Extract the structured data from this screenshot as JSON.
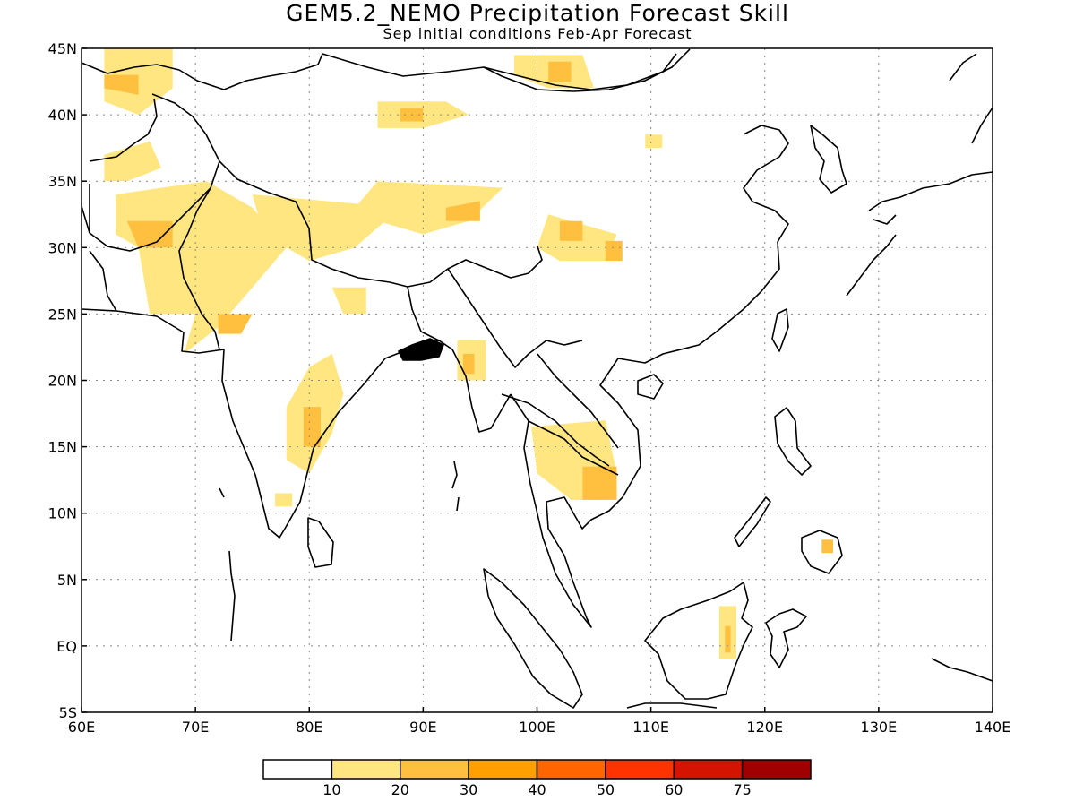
{
  "title": "GEM5.2_NEMO Precipitation Forecast Skill",
  "subtitle": "Sep initial conditions  Feb-Apr Forecast",
  "map": {
    "lon_range": [
      60,
      140
    ],
    "lat_range": [
      -5,
      45
    ],
    "gridlines": true,
    "lon_ticks": [
      "60E",
      "70E",
      "80E",
      "90E",
      "100E",
      "110E",
      "120E",
      "130E",
      "140E"
    ],
    "lat_ticks": [
      "5S",
      "EQ",
      "5N",
      "10N",
      "15N",
      "20N",
      "25N",
      "30N",
      "35N",
      "40N",
      "45N"
    ]
  },
  "colorbar": {
    "labels": [
      "10",
      "20",
      "30",
      "40",
      "50",
      "60",
      "75"
    ],
    "colors": [
      "#ffffff",
      "#ffe680",
      "#ffc040",
      "#ffa000",
      "#ff6600",
      "#ff3300",
      "#d41400",
      "#a00000"
    ]
  },
  "skill_regions": [
    {
      "level": 1,
      "lonlat": [
        [
          62,
          45
        ],
        [
          68,
          45
        ],
        [
          68,
          42
        ],
        [
          65,
          40
        ],
        [
          62,
          41
        ]
      ]
    },
    {
      "level": 2,
      "lonlat": [
        [
          62,
          43
        ],
        [
          65,
          43
        ],
        [
          65,
          41.5
        ],
        [
          62,
          42
        ]
      ]
    },
    {
      "level": 1,
      "lonlat": [
        [
          62,
          37
        ],
        [
          66,
          38
        ],
        [
          67,
          36
        ],
        [
          64,
          35
        ],
        [
          62,
          35
        ]
      ]
    },
    {
      "level": 1,
      "lonlat": [
        [
          63,
          34
        ],
        [
          71,
          35
        ],
        [
          75,
          33
        ],
        [
          78,
          30
        ],
        [
          74,
          26
        ],
        [
          72,
          24
        ],
        [
          69,
          22
        ],
        [
          70,
          25
        ],
        [
          66,
          25
        ],
        [
          65,
          30
        ],
        [
          63,
          31
        ]
      ]
    },
    {
      "level": 2,
      "lonlat": [
        [
          64,
          32
        ],
        [
          68,
          32
        ],
        [
          68,
          30
        ],
        [
          65,
          30
        ]
      ]
    },
    {
      "level": 2,
      "lonlat": [
        [
          72,
          25
        ],
        [
          75,
          25
        ],
        [
          74,
          23.5
        ],
        [
          72,
          23.5
        ]
      ]
    },
    {
      "level": 1,
      "lonlat": [
        [
          75,
          34
        ],
        [
          88,
          33
        ],
        [
          84,
          30
        ],
        [
          80,
          29
        ],
        [
          76,
          31
        ]
      ]
    },
    {
      "level": 1,
      "lonlat": [
        [
          82,
          27
        ],
        [
          85,
          27
        ],
        [
          85,
          25
        ],
        [
          83,
          25
        ]
      ]
    },
    {
      "level": 1,
      "lonlat": [
        [
          80,
          21
        ],
        [
          82,
          22
        ],
        [
          83,
          19
        ],
        [
          82,
          16
        ],
        [
          80,
          13
        ],
        [
          78,
          14
        ],
        [
          78,
          18
        ]
      ]
    },
    {
      "level": 2,
      "lonlat": [
        [
          79.5,
          18
        ],
        [
          81,
          18
        ],
        [
          81,
          15
        ],
        [
          79.5,
          15
        ]
      ]
    },
    {
      "level": 1,
      "lonlat": [
        [
          77,
          11.5
        ],
        [
          78.5,
          11.5
        ],
        [
          78.5,
          10.5
        ],
        [
          77,
          10.5
        ]
      ]
    },
    {
      "level": 1,
      "lonlat": [
        [
          86,
          35
        ],
        [
          97,
          34.5
        ],
        [
          94,
          32
        ],
        [
          90,
          31
        ],
        [
          86,
          32
        ],
        [
          83,
          32
        ]
      ]
    },
    {
      "level": 2,
      "lonlat": [
        [
          92,
          33
        ],
        [
          95,
          33.5
        ],
        [
          95,
          32
        ],
        [
          92,
          32
        ]
      ]
    },
    {
      "level": 1,
      "lonlat": [
        [
          86,
          41
        ],
        [
          92,
          41
        ],
        [
          94,
          40
        ],
        [
          90,
          39
        ],
        [
          86,
          39
        ]
      ]
    },
    {
      "level": 2,
      "lonlat": [
        [
          88,
          40.5
        ],
        [
          90,
          40.5
        ],
        [
          90,
          39.5
        ],
        [
          88,
          39.5
        ]
      ]
    },
    {
      "level": 1,
      "lonlat": [
        [
          98,
          44.5
        ],
        [
          104,
          44.5
        ],
        [
          105,
          42
        ],
        [
          101,
          42
        ],
        [
          98,
          43
        ]
      ]
    },
    {
      "level": 2,
      "lonlat": [
        [
          101,
          44
        ],
        [
          103,
          44
        ],
        [
          103,
          42.5
        ],
        [
          101,
          42.5
        ]
      ]
    },
    {
      "level": 1,
      "lonlat": [
        [
          101,
          32.5
        ],
        [
          107,
          31
        ],
        [
          106,
          29
        ],
        [
          102,
          29
        ],
        [
          100,
          30
        ]
      ]
    },
    {
      "level": 2,
      "lonlat": [
        [
          102,
          32
        ],
        [
          104,
          32
        ],
        [
          104,
          30.5
        ],
        [
          102,
          30.5
        ]
      ]
    },
    {
      "level": 2,
      "lonlat": [
        [
          106,
          30.5
        ],
        [
          107.5,
          30.5
        ],
        [
          107.5,
          29
        ],
        [
          106,
          29
        ]
      ]
    },
    {
      "level": 1,
      "lonlat": [
        [
          109.5,
          38.5
        ],
        [
          111,
          38.5
        ],
        [
          111,
          37.5
        ],
        [
          109.5,
          37.5
        ]
      ]
    },
    {
      "level": 1,
      "lonlat": [
        [
          93,
          23
        ],
        [
          95.5,
          23
        ],
        [
          95.5,
          20
        ],
        [
          93,
          20
        ]
      ]
    },
    {
      "level": 2,
      "lonlat": [
        [
          93.5,
          22
        ],
        [
          94.5,
          22
        ],
        [
          94.5,
          20.5
        ],
        [
          93.5,
          20.5
        ]
      ]
    },
    {
      "level": 1,
      "lonlat": [
        [
          99.5,
          16.5
        ],
        [
          106,
          17
        ],
        [
          107,
          13
        ],
        [
          106,
          11
        ],
        [
          103,
          11
        ],
        [
          100,
          13
        ]
      ]
    },
    {
      "level": 2,
      "lonlat": [
        [
          104,
          13.5
        ],
        [
          107,
          13.5
        ],
        [
          107,
          11
        ],
        [
          104,
          11
        ]
      ]
    },
    {
      "level": 2,
      "lonlat": [
        [
          125,
          8
        ],
        [
          126,
          8
        ],
        [
          126,
          7
        ],
        [
          125,
          7
        ]
      ]
    },
    {
      "level": 1,
      "lonlat": [
        [
          116,
          3
        ],
        [
          117.5,
          3
        ],
        [
          117.5,
          -1
        ],
        [
          116,
          -1
        ]
      ]
    },
    {
      "level": 2,
      "lonlat": [
        [
          116.5,
          1.5
        ],
        [
          117,
          1.5
        ],
        [
          117,
          -0.5
        ],
        [
          116.5,
          -0.5
        ]
      ]
    }
  ]
}
